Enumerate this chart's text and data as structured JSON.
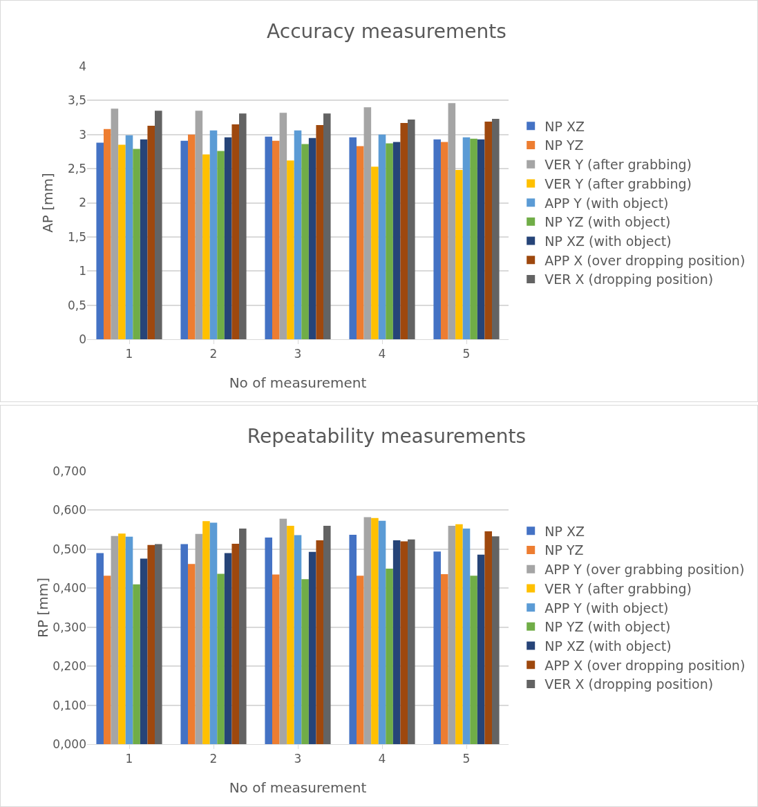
{
  "chart_data": [
    {
      "type": "bar",
      "title": "Accuracy measurements",
      "xlabel": "No of measurement",
      "ylabel": "AP [mm]",
      "categories": [
        "1",
        "2",
        "3",
        "4",
        "5"
      ],
      "ylim": [
        0,
        4
      ],
      "yticks": [
        0,
        {
          "value": 0.5,
          "label": "0,5"
        },
        1,
        {
          "value": 1.5,
          "label": "1,5"
        },
        2,
        {
          "value": 2.5,
          "label": "2,5"
        },
        3,
        {
          "value": 3.5,
          "label": "3,5"
        },
        4
      ],
      "grid": "y",
      "legend": "right",
      "series": [
        {
          "name": "NP XZ",
          "color": "#4472c4",
          "values": [
            2.88,
            2.91,
            2.97,
            2.96,
            2.93
          ]
        },
        {
          "name": "NP YZ",
          "color": "#ed7d31",
          "values": [
            3.08,
            3.0,
            2.91,
            2.83,
            2.89
          ]
        },
        {
          "name": "VER Y (after grabbing)",
          "color": "#a5a5a5",
          "values": [
            3.38,
            3.35,
            3.32,
            3.4,
            3.46
          ]
        },
        {
          "name": "VER Y (after grabbing)",
          "color": "#ffc000",
          "values": [
            2.85,
            2.71,
            2.62,
            2.53,
            2.48
          ]
        },
        {
          "name": "APP Y (with object)",
          "color": "#5b9bd5",
          "values": [
            2.99,
            3.06,
            3.06,
            3.0,
            2.96
          ]
        },
        {
          "name": "NP YZ (with object)",
          "color": "#70ad47",
          "values": [
            2.79,
            2.76,
            2.86,
            2.87,
            2.94
          ]
        },
        {
          "name": "NP XZ (with object)",
          "color": "#264478",
          "values": [
            2.93,
            2.96,
            2.95,
            2.89,
            2.93
          ]
        },
        {
          "name": "APP X (over dropping position)",
          "color": "#9e480e",
          "values": [
            3.13,
            3.15,
            3.14,
            3.17,
            3.19
          ]
        },
        {
          "name": "VER X (dropping position)",
          "color": "#636363",
          "values": [
            3.35,
            3.31,
            3.31,
            3.22,
            3.23
          ]
        }
      ]
    },
    {
      "type": "bar",
      "title": "Repeatability measurements",
      "xlabel": "No of measurement",
      "ylabel": "RP [mm]",
      "categories": [
        "1",
        "2",
        "3",
        "4",
        "5"
      ],
      "ylim": [
        0,
        0.7
      ],
      "yticks": [
        {
          "value": 0,
          "label": "0,000"
        },
        {
          "value": 0.1,
          "label": "0,100"
        },
        {
          "value": 0.2,
          "label": "0,200"
        },
        {
          "value": 0.3,
          "label": "0,300"
        },
        {
          "value": 0.4,
          "label": "0,400"
        },
        {
          "value": 0.5,
          "label": "0,500"
        },
        {
          "value": 0.6,
          "label": "0,600"
        },
        {
          "value": 0.7,
          "label": "0,700"
        }
      ],
      "grid": "y",
      "legend": "right",
      "series": [
        {
          "name": "NP XZ",
          "color": "#4472c4",
          "values": [
            0.49,
            0.513,
            0.53,
            0.537,
            0.494
          ]
        },
        {
          "name": "NP YZ",
          "color": "#ed7d31",
          "values": [
            0.432,
            0.462,
            0.435,
            0.432,
            0.436
          ]
        },
        {
          "name": "APP Y (over grabbing position)",
          "color": "#a5a5a5",
          "values": [
            0.534,
            0.539,
            0.578,
            0.582,
            0.56
          ]
        },
        {
          "name": "VER Y (after grabbing)",
          "color": "#ffc000",
          "values": [
            0.54,
            0.572,
            0.56,
            0.58,
            0.564
          ]
        },
        {
          "name": "APP Y (with object)",
          "color": "#5b9bd5",
          "values": [
            0.532,
            0.568,
            0.536,
            0.573,
            0.553
          ]
        },
        {
          "name": "NP YZ (with object)",
          "color": "#70ad47",
          "values": [
            0.41,
            0.437,
            0.423,
            0.45,
            0.432
          ]
        },
        {
          "name": "NP XZ (with object)",
          "color": "#264478",
          "values": [
            0.476,
            0.49,
            0.493,
            0.523,
            0.486
          ]
        },
        {
          "name": "APP X (over dropping position)",
          "color": "#9e480e",
          "values": [
            0.511,
            0.514,
            0.523,
            0.52,
            0.546
          ]
        },
        {
          "name": "VER X (dropping position)",
          "color": "#636363",
          "values": [
            0.513,
            0.553,
            0.56,
            0.525,
            0.533
          ]
        }
      ]
    }
  ]
}
